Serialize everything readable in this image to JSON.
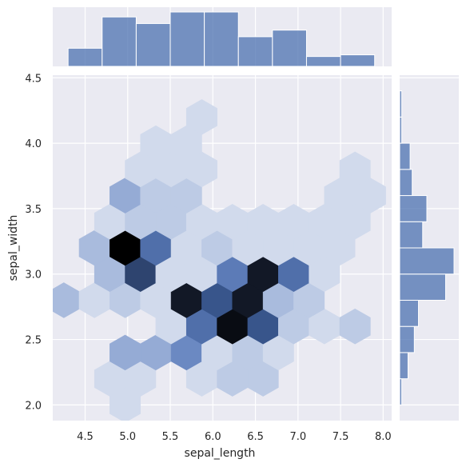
{
  "chart_data": {
    "type": "hexbin-joint",
    "x_label": "sepal_length",
    "y_label": "sepal_width",
    "xlim": [
      4.12,
      8.1
    ],
    "ylim": [
      1.88,
      4.52
    ],
    "x_ticks": [
      4.5,
      5.0,
      5.5,
      6.0,
      6.5,
      7.0,
      7.5,
      8.0
    ],
    "x_tick_labels": [
      "4.5",
      "5.0",
      "5.5",
      "6.0",
      "6.5",
      "7.0",
      "7.5",
      "8.0"
    ],
    "y_ticks": [
      2.0,
      2.5,
      3.0,
      3.5,
      4.0,
      4.5
    ],
    "y_tick_labels": [
      "2.0",
      "2.5",
      "3.0",
      "3.5",
      "4.0",
      "4.5"
    ],
    "grid": true,
    "colors": {
      "background": "#eaeaf2",
      "hex_base": "#4c72b0",
      "hex_dark": "#000000",
      "bar": "#4c72b0"
    },
    "hexbin": {
      "centers_x": [
        4.25,
        4.61,
        4.97,
        5.33,
        5.69,
        6.05,
        6.41,
        6.77,
        7.13,
        7.49,
        7.85
      ],
      "hex_rows": [
        {
          "y": 2.0,
          "x_index": [
            2
          ],
          "values": [
            1
          ]
        },
        {
          "y": 2.2,
          "x_index": [
            1,
            2,
            4,
            5,
            6
          ],
          "values": [
            1,
            1,
            1,
            2,
            2
          ]
        },
        {
          "y": 2.4,
          "x_index": [
            2,
            3,
            4,
            5,
            6,
            7
          ],
          "values": [
            4,
            4,
            6,
            1,
            2,
            1
          ]
        },
        {
          "y": 2.6,
          "x_index": [
            3,
            4,
            5,
            6,
            7,
            8,
            9
          ],
          "values": [
            1,
            8,
            15,
            10,
            2,
            1,
            2
          ]
        },
        {
          "y": 2.8,
          "x_index": [
            0,
            1,
            2,
            3,
            4,
            5,
            6,
            7,
            8
          ],
          "values": [
            3,
            1,
            2,
            1,
            14,
            10,
            14,
            3,
            2
          ]
        },
        {
          "y": 3.0,
          "x_index": [
            1,
            2,
            3,
            4,
            5,
            6,
            7,
            8
          ],
          "values": [
            3,
            11,
            1,
            1,
            7,
            14,
            8,
            1
          ]
        },
        {
          "y": 3.2,
          "x_index": [
            1,
            2,
            3,
            4,
            5,
            6,
            7,
            8,
            9
          ],
          "values": [
            3,
            16,
            8,
            1,
            2,
            1,
            1,
            1,
            1
          ]
        },
        {
          "y": 3.4,
          "x_index": [
            1,
            2,
            3,
            4,
            5,
            6,
            7,
            8,
            9
          ],
          "values": [
            1,
            2,
            2,
            1,
            1,
            1,
            1,
            1,
            1
          ]
        },
        {
          "y": 3.6,
          "x_index": [
            2,
            3,
            4,
            9,
            10
          ],
          "values": [
            4,
            2,
            2,
            1,
            1
          ]
        },
        {
          "y": 3.8,
          "x_index": [
            2,
            3,
            4,
            9
          ],
          "values": [
            1,
            1,
            1,
            1
          ]
        },
        {
          "y": 4.0,
          "x_index": [
            3,
            4
          ],
          "values": [
            1,
            1
          ]
        },
        {
          "y": 4.2,
          "x_index": [
            4
          ],
          "values": [
            1
          ]
        }
      ]
    },
    "marginal_x": {
      "bin_edges": [
        4.3,
        4.7,
        5.1,
        5.5,
        5.9,
        6.3,
        6.7,
        7.1,
        7.5,
        7.9
      ],
      "counts": [
        11,
        30,
        26,
        33,
        33,
        18,
        22,
        6,
        7
      ]
    },
    "marginal_y": {
      "bin_edges": [
        2.0,
        2.2,
        2.4,
        2.6,
        2.8,
        3.0,
        3.2,
        3.4,
        3.6,
        3.8,
        4.0,
        4.2,
        4.4
      ],
      "counts": [
        1,
        4,
        7,
        9,
        22,
        26,
        11,
        13,
        6,
        5,
        1,
        1
      ]
    }
  }
}
